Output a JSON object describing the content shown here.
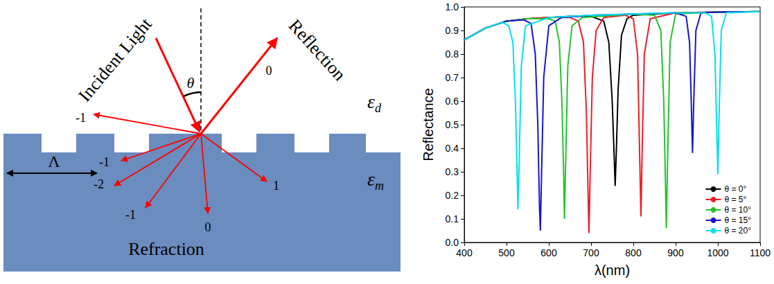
{
  "diagram": {
    "incident_label": "Incident Light",
    "reflection_label": "Reflection",
    "refraction_label": "Refraction",
    "angle_label": "θ",
    "period_label": "Λ",
    "media": [
      {
        "symbol": "ε",
        "subscript": "d"
      },
      {
        "symbol": "ε",
        "subscript": "m"
      }
    ],
    "reflected_orders": [
      "0",
      "-1"
    ],
    "refracted_orders": [
      "-1",
      "-2",
      "-1",
      "0",
      "1"
    ]
  },
  "chart_data": {
    "type": "line",
    "x_label": "λ(nm)",
    "y_label": "Reflectance",
    "xlim": [
      400,
      1100
    ],
    "xticks": [
      400,
      500,
      600,
      700,
      800,
      900,
      1000,
      1100
    ],
    "ylim": [
      0,
      1
    ],
    "yticks": [
      {
        "value": 0,
        "label": "0.0"
      },
      0.1,
      0.2,
      0.3,
      0.4,
      0.5,
      0.6,
      0.7,
      0.8,
      0.9,
      {
        "value": 1,
        "label": "1.0"
      }
    ],
    "grid": false,
    "legend": "lower right",
    "series": [
      {
        "name": "θ = 0°",
        "color": "#000000",
        "x": [
          400,
          450,
          500,
          550,
          600,
          650,
          700,
          730,
          742,
          750,
          754,
          757,
          760,
          764,
          772,
          785,
          800,
          900,
          1000,
          1100
        ],
        "values": [
          0.86,
          0.91,
          0.94,
          0.95,
          0.955,
          0.96,
          0.96,
          0.94,
          0.85,
          0.6,
          0.4,
          0.24,
          0.4,
          0.65,
          0.88,
          0.95,
          0.965,
          0.975,
          0.978,
          0.98
        ]
      },
      {
        "name": "θ = 5°",
        "color": "#ee1c25",
        "x": [
          400,
          450,
          500,
          550,
          600,
          650,
          670,
          682,
          689,
          693,
          695,
          698,
          703,
          712,
          730,
          780,
          800,
          810,
          814,
          818,
          821,
          826,
          840,
          900,
          1000,
          1100
        ],
        "values": [
          0.86,
          0.91,
          0.94,
          0.95,
          0.955,
          0.955,
          0.94,
          0.85,
          0.55,
          0.2,
          0.04,
          0.3,
          0.7,
          0.9,
          0.955,
          0.965,
          0.95,
          0.8,
          0.45,
          0.11,
          0.4,
          0.8,
          0.95,
          0.975,
          0.978,
          0.98
        ]
      },
      {
        "name": "θ = 10°",
        "color": "#22c32e",
        "x": [
          400,
          450,
          500,
          550,
          600,
          615,
          625,
          631,
          635,
          637,
          640,
          645,
          655,
          680,
          800,
          850,
          865,
          872,
          876,
          878,
          881,
          887,
          900,
          1000,
          1100
        ],
        "values": [
          0.86,
          0.91,
          0.94,
          0.95,
          0.95,
          0.94,
          0.85,
          0.6,
          0.3,
          0.1,
          0.35,
          0.75,
          0.92,
          0.955,
          0.97,
          0.965,
          0.9,
          0.6,
          0.25,
          0.06,
          0.35,
          0.85,
          0.97,
          0.978,
          0.98
        ]
      },
      {
        "name": "θ = 15°",
        "color": "#1414d2",
        "x": [
          400,
          450,
          500,
          540,
          558,
          568,
          574,
          578,
          580,
          583,
          588,
          600,
          630,
          700,
          800,
          900,
          925,
          933,
          937,
          940,
          943,
          948,
          960,
          1000,
          1100
        ],
        "values": [
          0.86,
          0.91,
          0.94,
          0.945,
          0.93,
          0.8,
          0.5,
          0.15,
          0.05,
          0.3,
          0.7,
          0.92,
          0.955,
          0.965,
          0.97,
          0.975,
          0.96,
          0.85,
          0.6,
          0.38,
          0.6,
          0.9,
          0.975,
          0.978,
          0.98
        ]
      },
      {
        "name": "θ = 20°",
        "color": "#00e1ee",
        "x": [
          400,
          450,
          490,
          505,
          515,
          521,
          525,
          527,
          530,
          535,
          545,
          600,
          700,
          800,
          900,
          970,
          985,
          993,
          997,
          1000,
          1003,
          1008,
          1020,
          1100
        ],
        "values": [
          0.86,
          0.91,
          0.935,
          0.92,
          0.85,
          0.6,
          0.3,
          0.14,
          0.35,
          0.75,
          0.92,
          0.955,
          0.965,
          0.97,
          0.975,
          0.975,
          0.96,
          0.8,
          0.5,
          0.29,
          0.55,
          0.9,
          0.975,
          0.98
        ]
      }
    ]
  }
}
